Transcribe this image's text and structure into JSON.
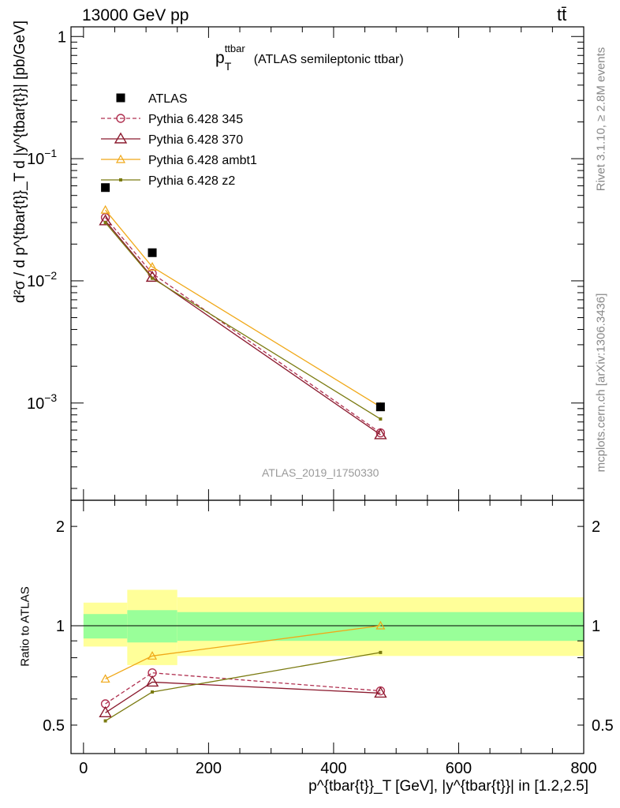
{
  "header": {
    "energy_label": "13000 GeV pp",
    "process_label": "tt̄",
    "rivet_label": "Rivet 3.1.10, ≥ 2.8M events",
    "mcplots_label": "mcplots.cern.ch [arXiv:1306.3436]",
    "analysis_id": "ATLAS_2019_I1750330"
  },
  "plot_title": {
    "main": "p",
    "sup": "ttbar",
    "sub": "T",
    "rest": "(ATLAS semileptonic ttbar)"
  },
  "axes": {
    "main_ylabel": "d²σ / d p^{tbar{t}}_T d |y^{tbar{t}}| [pb/GeV]",
    "ratio_ylabel": "Ratio to ATLAS",
    "xlabel": "p^{tbar{t}}_T [GeV], |y^{tbar{t}}| in [1.2,2.5]"
  },
  "colors": {
    "data": "#000000",
    "p345": "#b03050",
    "p370": "#8b1a2e",
    "ambt1": "#f0a818",
    "z2": "#7a7a10",
    "band_inner": "#99ff99",
    "band_outer": "#ffff99"
  },
  "chart_data": {
    "type": "line",
    "x_range": [
      -20,
      800
    ],
    "x_ticks": [
      0,
      200,
      400,
      600,
      800
    ],
    "main_panel": {
      "y_scale": "log",
      "y_range": [
        0.00016,
        1.2
      ],
      "y_ticks": [
        {
          "value": 1,
          "label": "1"
        },
        {
          "value": 0.1,
          "label": "10",
          "exp": "−1"
        },
        {
          "value": 0.01,
          "label": "10",
          "exp": "−2"
        },
        {
          "value": 0.001,
          "label": "10",
          "exp": "−3"
        }
      ],
      "series": [
        {
          "name": "ATLAS",
          "key": "data",
          "marker": "square",
          "x": [
            35,
            110,
            475
          ],
          "y": [
            0.058,
            0.017,
            0.00093
          ]
        },
        {
          "name": "Pythia 6.428 345",
          "key": "p345",
          "marker": "circle",
          "dash": true,
          "x": [
            35,
            110,
            475
          ],
          "y": [
            0.033,
            0.0115,
            0.00057
          ]
        },
        {
          "name": "Pythia 6.428 370",
          "key": "p370",
          "marker": "triangle",
          "x": [
            35,
            110,
            475
          ],
          "y": [
            0.031,
            0.0107,
            0.00055
          ]
        },
        {
          "name": "Pythia 6.428 ambt1",
          "key": "ambt1",
          "marker": "triangle-small",
          "x": [
            35,
            110,
            475
          ],
          "y": [
            0.038,
            0.013,
            0.00093
          ]
        },
        {
          "name": "Pythia 6.428 z2",
          "key": "z2",
          "marker": "dot",
          "x": [
            35,
            110,
            475
          ],
          "y": [
            0.03,
            0.0105,
            0.00074
          ]
        }
      ]
    },
    "ratio_panel": {
      "y_scale": "log",
      "y_range": [
        0.41,
        2.4
      ],
      "y_ticks": [
        {
          "value": 0.5,
          "label": "0.5"
        },
        {
          "value": 1,
          "label": "1"
        },
        {
          "value": 2,
          "label": "2"
        }
      ],
      "bands": [
        {
          "x0": 0,
          "x1": 70,
          "inner": [
            0.915,
            1.085
          ],
          "outer": [
            0.865,
            1.175
          ]
        },
        {
          "x0": 70,
          "x1": 150,
          "inner": [
            0.89,
            1.115
          ],
          "outer": [
            0.76,
            1.285
          ]
        },
        {
          "x0": 150,
          "x1": 800,
          "inner": [
            0.9,
            1.1
          ],
          "outer": [
            0.81,
            1.22
          ]
        }
      ],
      "series": [
        {
          "key": "p345",
          "marker": "circle",
          "dash": true,
          "x": [
            35,
            110,
            475
          ],
          "y": [
            0.58,
            0.72,
            0.635
          ]
        },
        {
          "key": "p370",
          "marker": "triangle",
          "x": [
            35,
            110,
            475
          ],
          "y": [
            0.545,
            0.675,
            0.625
          ]
        },
        {
          "key": "ambt1",
          "marker": "triangle-small",
          "x": [
            35,
            110,
            475
          ],
          "y": [
            0.69,
            0.81,
            1.0
          ]
        },
        {
          "key": "z2",
          "marker": "dot",
          "x": [
            35,
            110,
            475
          ],
          "y": [
            0.515,
            0.63,
            0.83
          ]
        }
      ]
    }
  }
}
